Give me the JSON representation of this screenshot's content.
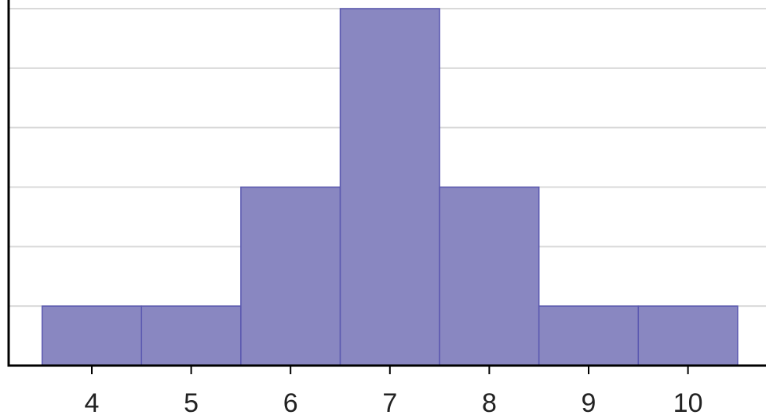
{
  "chart_data": {
    "type": "bar",
    "title": "",
    "xlabel": "",
    "ylabel": "",
    "categories": [
      "4",
      "5",
      "6",
      "7",
      "8",
      "9",
      "10"
    ],
    "x": [
      4,
      5,
      6,
      7,
      8,
      9,
      10
    ],
    "values": [
      1,
      1,
      3,
      6,
      3,
      1,
      1
    ],
    "ylim": [
      0,
      6
    ],
    "y_gridlines": [
      1,
      2,
      3,
      4,
      5,
      6
    ],
    "y_tick_labels_shown": false,
    "grid": true,
    "bar_color": "#8987c1",
    "bar_edge_color": "#5a58b0",
    "grid_color": "#d9d9d9",
    "axis_color": "#000000"
  }
}
